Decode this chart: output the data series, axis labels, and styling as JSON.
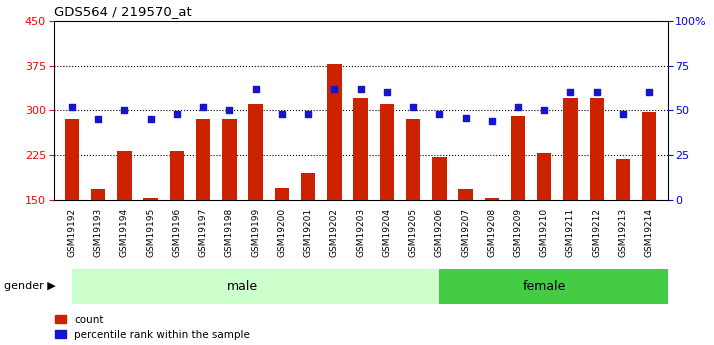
{
  "title": "GDS564 / 219570_at",
  "samples": [
    "GSM19192",
    "GSM19193",
    "GSM19194",
    "GSM19195",
    "GSM19196",
    "GSM19197",
    "GSM19198",
    "GSM19199",
    "GSM19200",
    "GSM19201",
    "GSM19202",
    "GSM19203",
    "GSM19204",
    "GSM19205",
    "GSM19206",
    "GSM19207",
    "GSM19208",
    "GSM19209",
    "GSM19210",
    "GSM19211",
    "GSM19212",
    "GSM19213",
    "GSM19214"
  ],
  "counts": [
    285,
    168,
    232,
    153,
    232,
    285,
    285,
    310,
    170,
    195,
    378,
    320,
    310,
    285,
    222,
    168,
    153,
    290,
    228,
    320,
    320,
    218,
    298
  ],
  "percentile_pct": [
    52,
    45,
    50,
    45,
    48,
    52,
    50,
    62,
    48,
    48,
    62,
    62,
    60,
    52,
    48,
    46,
    44,
    52,
    50,
    60,
    60,
    48,
    60
  ],
  "male_count": 14,
  "female_count": 9,
  "ylim_left": [
    150,
    450
  ],
  "ylim_right": [
    0,
    100
  ],
  "yticks_left": [
    150,
    225,
    300,
    375,
    450
  ],
  "yticks_right": [
    0,
    25,
    50,
    75,
    100
  ],
  "ytick_right_labels": [
    "0",
    "25",
    "50",
    "75",
    "100%"
  ],
  "bar_color": "#cc2200",
  "dot_color": "#1515cc",
  "male_bg": "#ccffcc",
  "female_bg": "#44cc44",
  "xticklabel_bg": "#cccccc",
  "background_color": "#ffffff",
  "bar_bottom": 150,
  "dot_size": 18
}
